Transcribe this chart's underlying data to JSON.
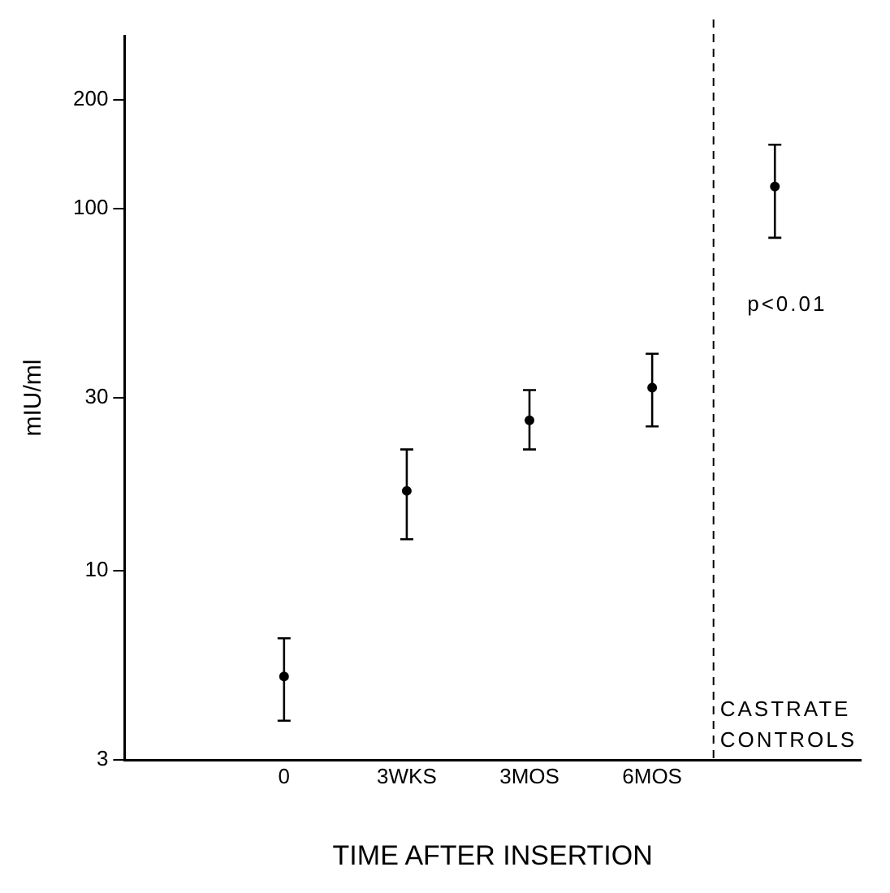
{
  "chart_data": {
    "type": "scatter",
    "xlabel": "TIME AFTER INSERTION",
    "ylabel": "mIU/ml",
    "categories": [
      "0",
      "3WKS",
      "3MOS",
      "6MOS",
      null
    ],
    "values": [
      5.1,
      16.6,
      26,
      32,
      115
    ],
    "errors": [
      [
        3.85,
        6.5
      ],
      [
        12.2,
        21.6
      ],
      [
        21.6,
        31.5
      ],
      [
        25,
        39.7
      ],
      [
        83,
        150
      ]
    ],
    "color": "#000000",
    "marker": "circle",
    "log": "y",
    "ylim": [
      3,
      300
    ],
    "yticks": [
      3,
      10,
      30,
      100,
      200
    ],
    "annotations": [
      "p<0.01",
      "CASTRATE CONTROLS"
    ],
    "grid": false,
    "legend": false
  }
}
